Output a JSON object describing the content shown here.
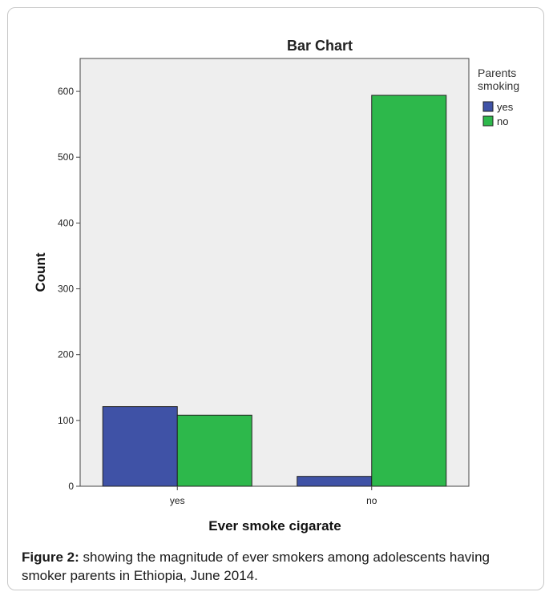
{
  "chart_data": {
    "type": "bar",
    "title": "Bar Chart",
    "xlabel": "Ever smoke cigarate",
    "ylabel": "Count",
    "categories": [
      "yes",
      "no"
    ],
    "series": [
      {
        "name": "yes",
        "values": [
          121,
          15
        ]
      },
      {
        "name": "no",
        "values": [
          108,
          594
        ]
      }
    ],
    "ylim": [
      0,
      650
    ],
    "yticks": [
      0,
      100,
      200,
      300,
      400,
      500,
      600
    ],
    "legend_title": "Parents smoking",
    "legend_placement": "right",
    "grid": false,
    "colors": {
      "yes": "#3f52a6",
      "no": "#2db84b",
      "plot_background": "#eeeeee"
    }
  },
  "caption": {
    "label": "Figure 2:",
    "text": " showing the magnitude of ever smokers among adolescents having smoker parents in Ethiopia, June 2014."
  }
}
